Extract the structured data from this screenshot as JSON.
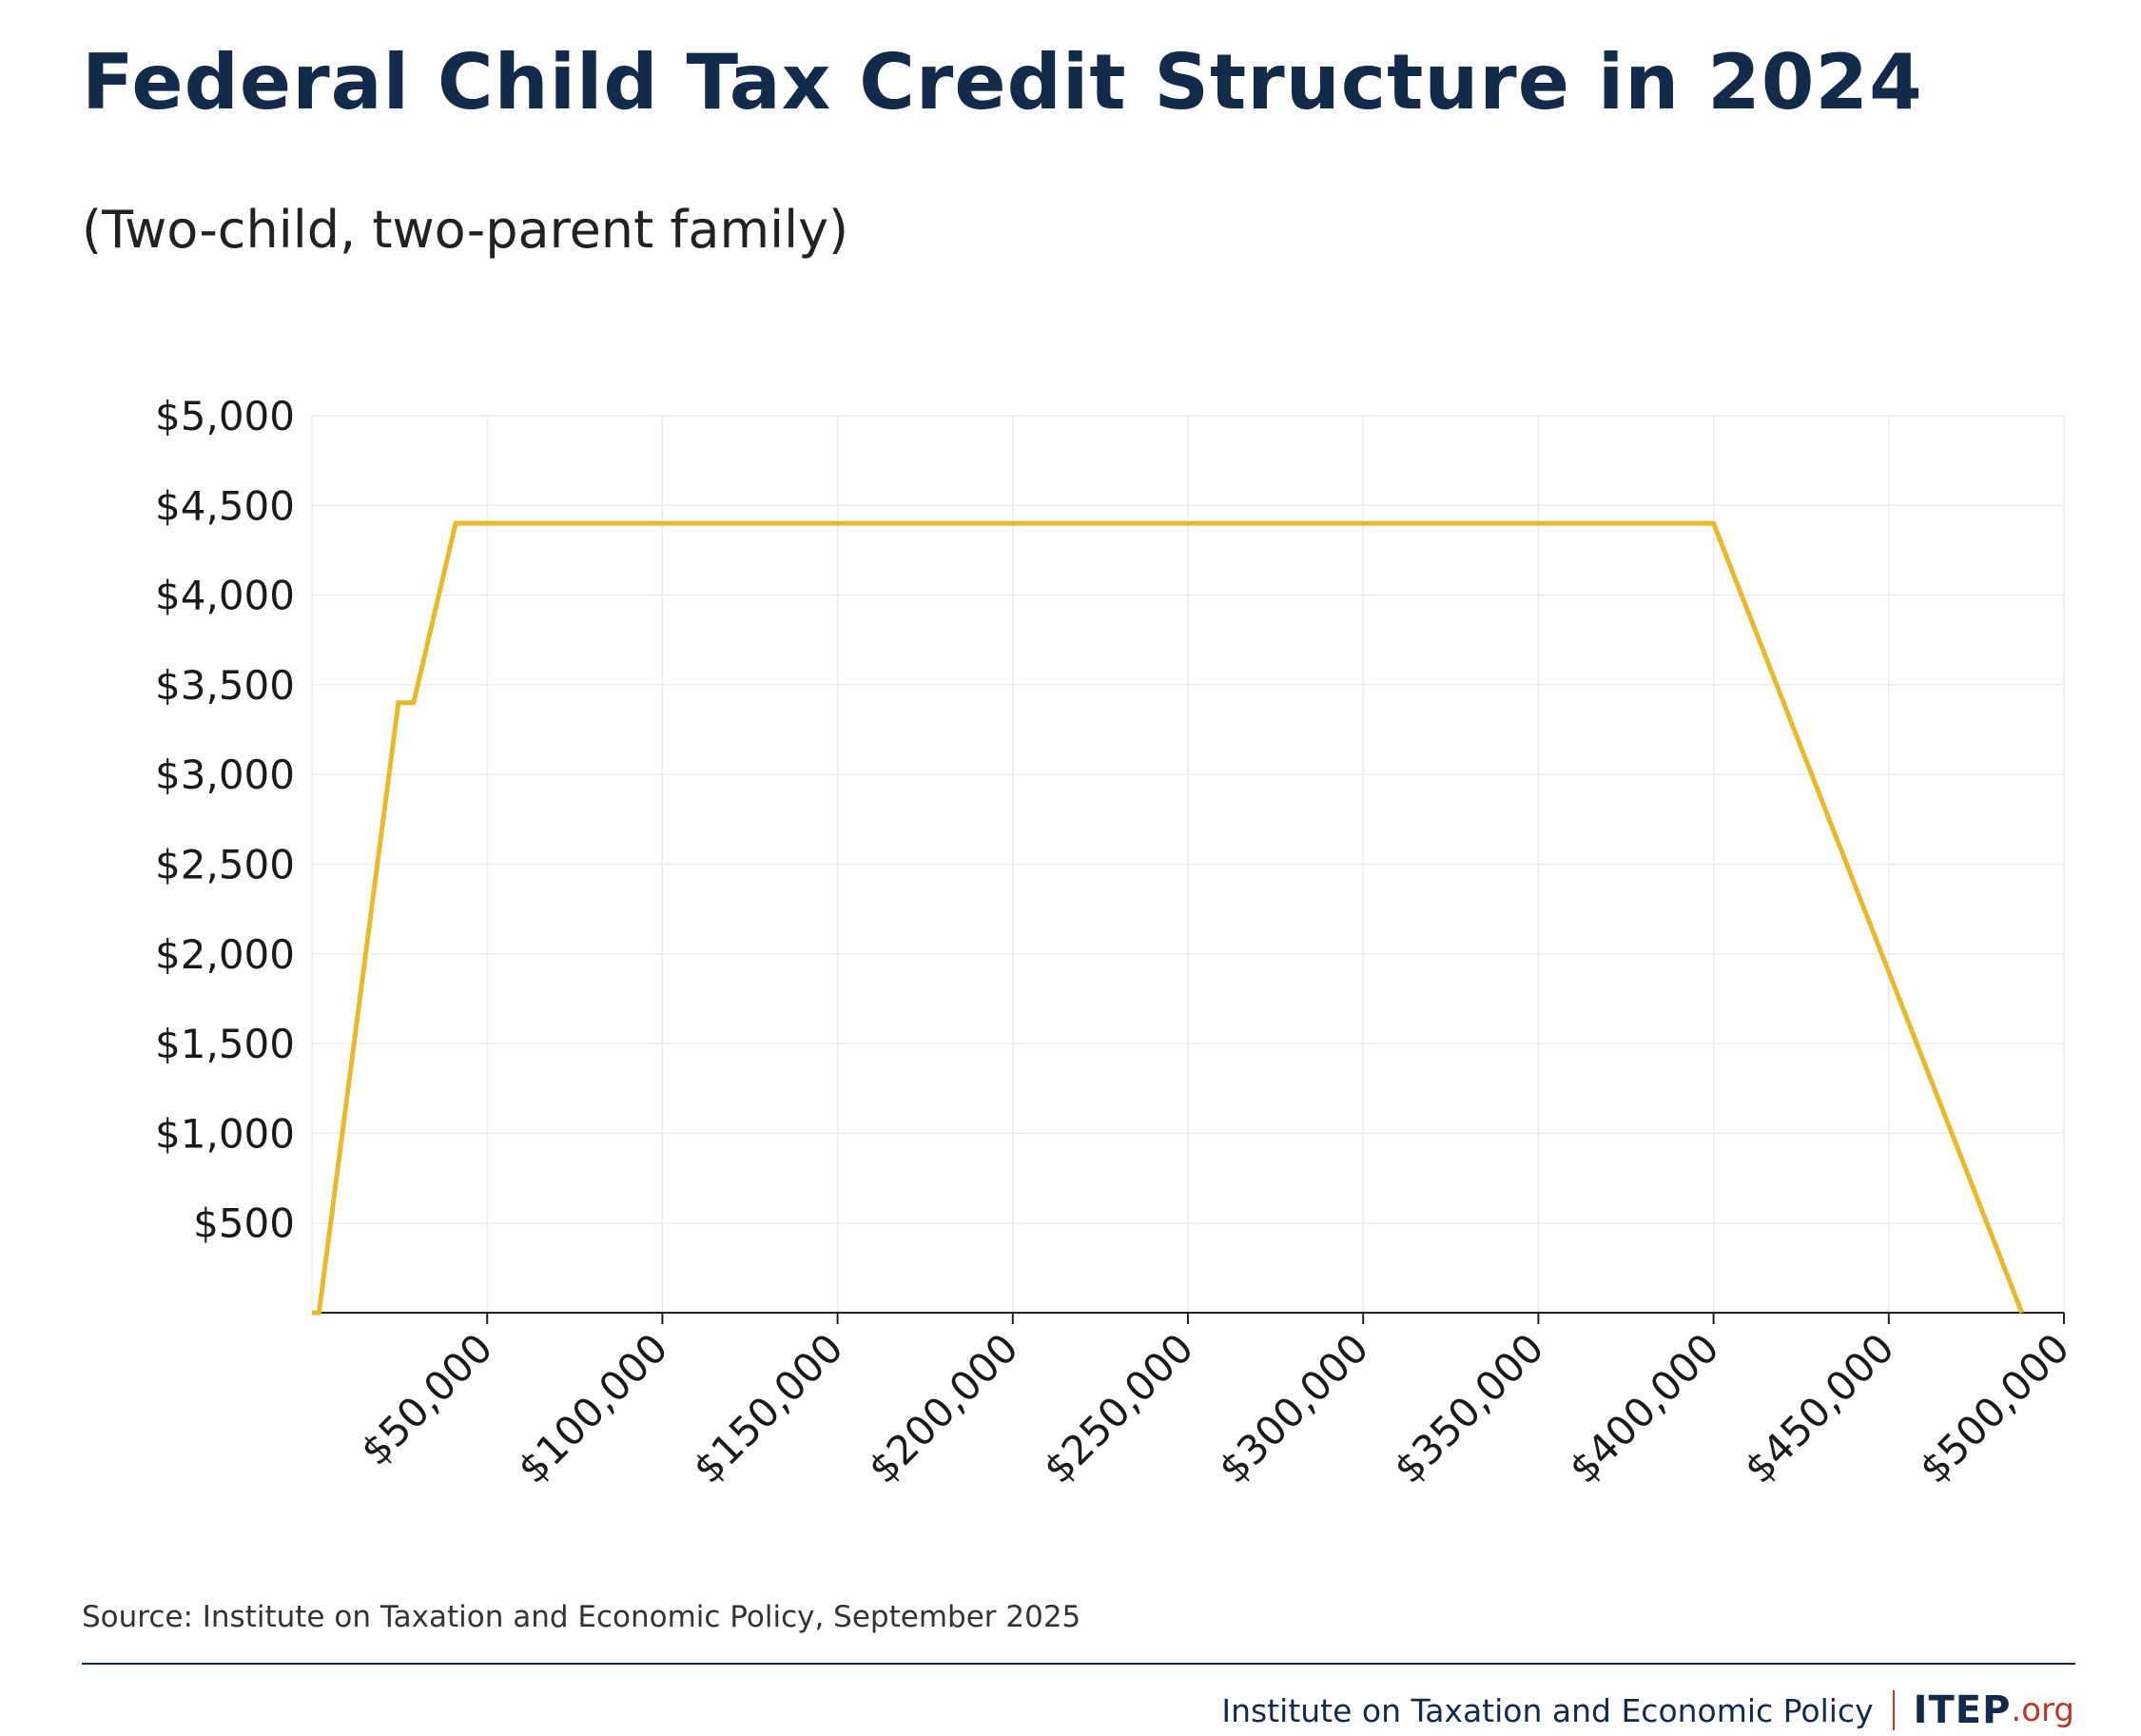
{
  "title": "Federal Child Tax Credit Structure in 2024",
  "subtitle": "(Two-child, two-parent family)",
  "source": "Source: Institute on Taxation and Economic Policy, September 2025",
  "footer": {
    "org_name": "Institute on Taxation and Economic Policy",
    "brand": "ITEP",
    "brand_ext": ".org"
  },
  "colors": {
    "title": "#132a4b",
    "line": "#e8b92c",
    "grid": "#ececec",
    "footer_accent": "#b23a2e"
  },
  "chart_data": {
    "type": "line",
    "title": "Federal Child Tax Credit Structure in 2024",
    "subtitle": "(Two-child, two-parent family)",
    "xlabel": "",
    "ylabel": "",
    "xlim": [
      0,
      500000
    ],
    "ylim": [
      0,
      5000
    ],
    "grid": true,
    "x_ticks": [
      50000,
      100000,
      150000,
      200000,
      250000,
      300000,
      350000,
      400000,
      450000,
      500000
    ],
    "x_tick_labels": [
      "$50,000",
      "$100,000",
      "$150,000",
      "$200,000",
      "$250,000",
      "$300,000",
      "$350,000",
      "$400,000",
      "$450,000",
      "$500,000"
    ],
    "y_ticks": [
      500,
      1000,
      1500,
      2000,
      2500,
      3000,
      3500,
      4000,
      4500,
      5000
    ],
    "y_tick_labels": [
      "$500",
      "$1,000",
      "$1,500",
      "$2,000",
      "$2,500",
      "$3,000",
      "$3,500",
      "$4,000",
      "$4,500",
      "$5,000"
    ],
    "series": [
      {
        "x": [
          0,
          2000,
          24667,
          29000,
          41000,
          400000,
          488000
        ],
        "y": [
          0,
          0,
          3400,
          3400,
          4400,
          4400,
          0
        ]
      }
    ]
  }
}
